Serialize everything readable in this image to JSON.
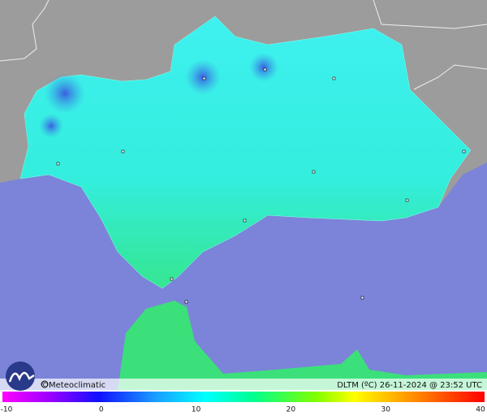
{
  "footer": {
    "credit": "©Meteoclimatic",
    "caption": "DLTM (ºC) 26-11-2024 @ 23:52 UTC"
  },
  "scale": {
    "ticks": [
      -10,
      0,
      10,
      20,
      30,
      40
    ]
  }
}
